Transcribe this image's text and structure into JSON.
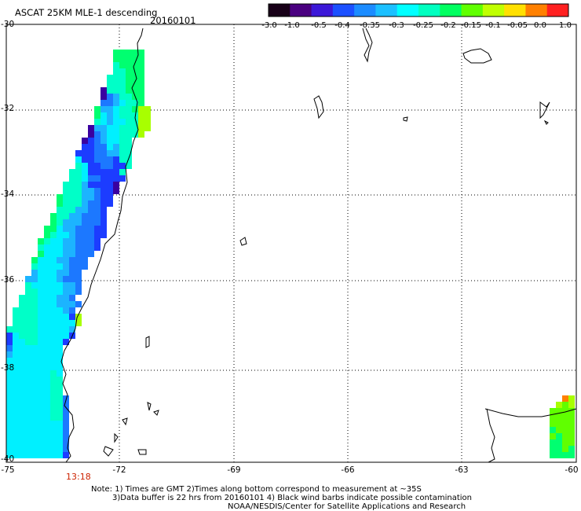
{
  "title": "ASCAT 25KM MLE-1 descending",
  "date": "20160101",
  "colorbar": {
    "labels": [
      "-3.0",
      "-1.0",
      "-0.5",
      "-0.4",
      "-0.35",
      "-0.3",
      "-0.25",
      "-0.2",
      "-0.15",
      "-0.1",
      "-0.05",
      "0.0",
      "1.0"
    ],
    "colors": [
      "#180018",
      "#4a0080",
      "#3c18d8",
      "#1c50ff",
      "#1c8cff",
      "#1cc0ff",
      "#00ffff",
      "#00ffc0",
      "#00ff60",
      "#60ff00",
      "#c0ff00",
      "#ffe000",
      "#ff8000",
      "#ff2020"
    ]
  },
  "axes": {
    "lat_labels": [
      "-30",
      "-32",
      "-34",
      "-36",
      "-38",
      "-40"
    ],
    "lon_labels": [
      "-75",
      "-72",
      "-69",
      "-66",
      "-63",
      "-60"
    ]
  },
  "swath_time": "13:18",
  "notes": {
    "line1": "Note: 1) Times are GMT 2)Times along bottom correspond to measurement at ~35S",
    "line2": "3)Data buffer is 22 hrs from 20160101 4) Black wind barbs indicate possible contamination",
    "line3": "NOAA/NESDIS/Center for Satellite Applications and Research"
  }
}
